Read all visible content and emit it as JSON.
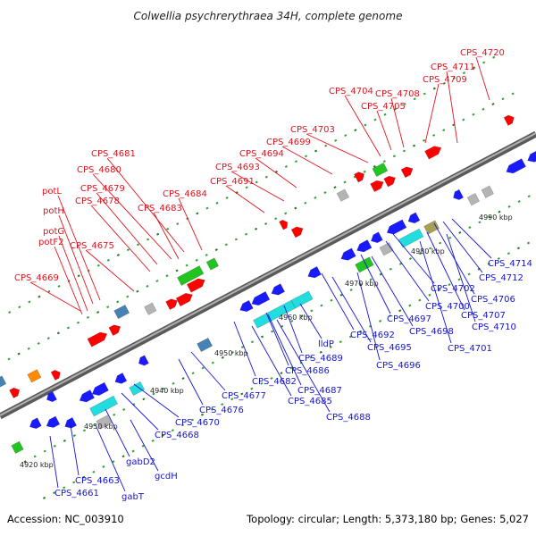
{
  "title": "Colwellia psychrerythraea 34H, complete genome",
  "footer": {
    "accession": "Accession: NC_003910",
    "summary": "Topology: circular; Length: 5,373,180 bp; Genes: 5,027"
  },
  "colors": {
    "forward_label": "#e0141e",
    "reverse_label": "#1414d2",
    "backbone": "#8a8a8a",
    "gene_red": "#ff0000",
    "gene_blue": "#1a1aff",
    "gene_green": "#22c422",
    "gene_cyan": "#22dddd",
    "gene_steel": "#4682b4",
    "gene_gray": "#b4b4b4",
    "gene_olive": "#a8a050",
    "gene_orange": "#ff8c00",
    "tick_green": "#1f7a1f"
  },
  "scale_labels": [
    "4920 kbp",
    "4930 kbp",
    "4940 kbp",
    "4950 kbp",
    "4960 kbp",
    "4970 kbp",
    "4980 kbp",
    "4990 kbp"
  ],
  "forward_labels": [
    "CPS_4720",
    "CPS_4711",
    "CPS_4709",
    "CPS_4704",
    "CPS_4708",
    "CPS_4705",
    "CPS_4703",
    "CPS_4699",
    "CPS_4694",
    "CPS_4693",
    "CPS_4691",
    "CPS_4681",
    "CPS_4680",
    "CPS_4679",
    "CPS_4678",
    "CPS_4684",
    "CPS_4683",
    "potL",
    "potH",
    "potG",
    "potF2",
    "CPS_4675",
    "CPS_4669"
  ],
  "reverse_labels": [
    "CPS_4714",
    "CPS_4712",
    "CPS_4706",
    "CPS_4702",
    "CPS_4707",
    "CPS_4710",
    "CPS_4700",
    "CPS_4697",
    "CPS_4698",
    "CPS_4701",
    "CPS_4692",
    "CPS_4695",
    "CPS_4696",
    "lldP",
    "CPS_4689",
    "CPS_4686",
    "CPS_4687",
    "CPS_4682",
    "CPS_4685",
    "CPS_4688",
    "CPS_4677",
    "CPS_4676",
    "CPS_4670",
    "CPS_4668",
    "gabD2",
    "gcdH",
    "CPS_4663",
    "gabT",
    "CPS_4661"
  ]
}
